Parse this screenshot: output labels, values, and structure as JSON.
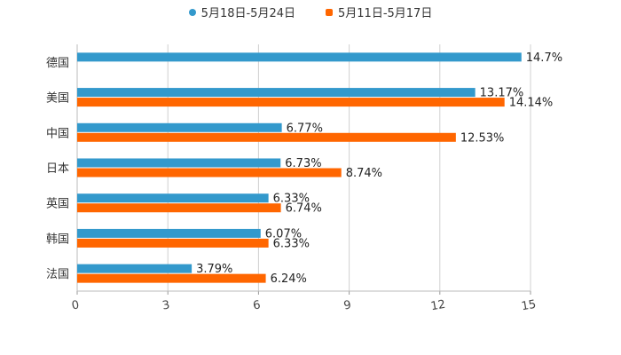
{
  "chart_data": {
    "type": "bar",
    "orientation": "horizontal",
    "categories": [
      "德国",
      "美国",
      "中国",
      "日本",
      "英国",
      "韩国",
      "法国"
    ],
    "series": [
      {
        "name": "5月18日-5月24日",
        "color": "#3399cc",
        "values": [
          14.7,
          13.17,
          6.77,
          6.73,
          6.33,
          6.07,
          3.79
        ],
        "labels": [
          "14.7%",
          "13.17%",
          "6.77%",
          "6.73%",
          "6.33%",
          "6.07%",
          "3.79%"
        ]
      },
      {
        "name": "5月11日-5月17日",
        "color": "#ff6600",
        "values": [
          null,
          14.14,
          12.53,
          8.74,
          6.74,
          6.33,
          6.24
        ],
        "labels": [
          "",
          "14.14%",
          "12.53%",
          "8.74%",
          "6.74%",
          "6.33%",
          "6.24%"
        ]
      }
    ],
    "xlim": [
      0,
      15
    ],
    "xticks": [
      "0",
      "3",
      "6",
      "9",
      "12",
      "15"
    ],
    "grid": true,
    "legend_position": "top-center"
  }
}
